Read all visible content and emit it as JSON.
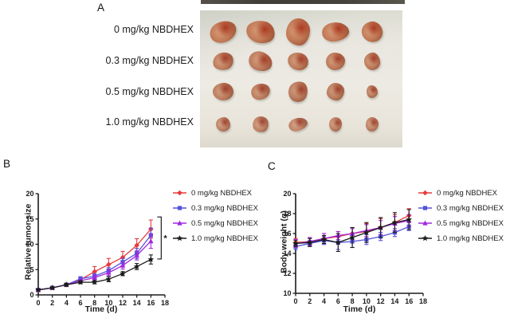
{
  "figure": {
    "panel_a": {
      "letter": "A",
      "rows": [
        {
          "label": "0 mg/kg NBDHEX",
          "tumor_sizes": [
            [
              34,
              26
            ],
            [
              36,
              28
            ],
            [
              30,
              34
            ],
            [
              34,
              24
            ],
            [
              26,
              26
            ]
          ]
        },
        {
          "label": "0.3 mg/kg NBDHEX",
          "tumor_sizes": [
            [
              26,
              22
            ],
            [
              30,
              24
            ],
            [
              26,
              22
            ],
            [
              24,
              22
            ],
            [
              20,
              22
            ]
          ]
        },
        {
          "label": "0.5 mg/kg NBDHEX",
          "tumor_sizes": [
            [
              26,
              22
            ],
            [
              24,
              20
            ],
            [
              24,
              26
            ],
            [
              22,
              22
            ],
            [
              14,
              16
            ]
          ]
        },
        {
          "label": "1.0 mg/kg NBDHEX",
          "tumor_sizes": [
            [
              18,
              18
            ],
            [
              20,
              20
            ],
            [
              24,
              16
            ],
            [
              16,
              18
            ],
            [
              16,
              18
            ]
          ]
        }
      ]
    },
    "panel_b": {
      "letter": "B"
    },
    "panel_c": {
      "letter": "C"
    }
  },
  "colors": {
    "red": "#e8393c",
    "blue": "#5353dd",
    "purple": "#a228dd",
    "black": "#1b1b1b"
  },
  "chart_data": [
    {
      "id": "relative-tumor-size",
      "type": "line",
      "title": "",
      "xlabel": "Time (d)",
      "ylabel": "Relative tumor size",
      "x": [
        0,
        2,
        4,
        6,
        8,
        10,
        12,
        14,
        16
      ],
      "xlim": [
        0,
        18
      ],
      "ylim": [
        0,
        20
      ],
      "xticks": [
        0,
        2,
        4,
        6,
        8,
        10,
        12,
        14,
        16,
        18
      ],
      "yticks": [
        0,
        5,
        10,
        15,
        20
      ],
      "grid": false,
      "legend_position": "right",
      "series": [
        {
          "name": "0 mg/kg NBDHEX",
          "color": "#e8393c",
          "marker": "diamond",
          "values": [
            1.0,
            1.4,
            2.0,
            3.0,
            4.6,
            6.0,
            7.4,
            9.8,
            13.0
          ],
          "errors": [
            0.2,
            0.2,
            0.3,
            0.5,
            1.0,
            1.2,
            1.2,
            1.3,
            1.8
          ]
        },
        {
          "name": "0.3 mg/kg NBDHEX",
          "color": "#5353dd",
          "marker": "square",
          "values": [
            1.0,
            1.4,
            2.0,
            3.2,
            3.7,
            4.8,
            6.5,
            8.2,
            11.8
          ],
          "errors": [
            0.2,
            0.2,
            0.3,
            0.4,
            0.5,
            0.6,
            0.7,
            1.0,
            1.4
          ]
        },
        {
          "name": "0.5 mg/kg NBDHEX",
          "color": "#a228dd",
          "marker": "triangle",
          "values": [
            1.0,
            1.4,
            2.0,
            2.8,
            3.4,
            4.4,
            5.8,
            7.8,
            10.6
          ],
          "errors": [
            0.2,
            0.2,
            0.3,
            0.4,
            0.5,
            0.6,
            0.7,
            0.9,
            1.4
          ]
        },
        {
          "name": "1.0 mg/kg NBDHEX",
          "color": "#1b1b1b",
          "marker": "star",
          "values": [
            1.0,
            1.4,
            2.0,
            2.5,
            2.5,
            3.1,
            4.2,
            5.6,
            7.0
          ],
          "errors": [
            0.2,
            0.2,
            0.3,
            0.3,
            0.3,
            0.5,
            0.4,
            0.6,
            0.9
          ]
        }
      ],
      "annotation": {
        "text": "*",
        "x": 16,
        "y_top": 15.4,
        "y_bottom": 7.1
      }
    },
    {
      "id": "body-weight",
      "type": "line",
      "title": "",
      "xlabel": "Time (d)",
      "ylabel": "Body weight (g)",
      "x": [
        0,
        2,
        4,
        6,
        8,
        10,
        12,
        14,
        16
      ],
      "xlim": [
        0,
        18
      ],
      "ylim": [
        10,
        20
      ],
      "xticks": [
        0,
        2,
        4,
        6,
        8,
        10,
        12,
        14,
        16,
        18
      ],
      "yticks": [
        10,
        12,
        14,
        16,
        18,
        20
      ],
      "grid": false,
      "legend_position": "right",
      "series": [
        {
          "name": "0 mg/kg NBDHEX",
          "color": "#e8393c",
          "marker": "diamond",
          "values": [
            15.1,
            15.2,
            15.5,
            15.7,
            16.0,
            16.2,
            16.6,
            17.1,
            17.8
          ],
          "errors": [
            0.4,
            0.4,
            0.5,
            0.5,
            0.6,
            0.8,
            0.9,
            0.8,
            0.7
          ]
        },
        {
          "name": "0.3 mg/kg NBDHEX",
          "color": "#5353dd",
          "marker": "square",
          "values": [
            14.7,
            15.0,
            15.3,
            15.1,
            15.2,
            15.4,
            15.7,
            16.1,
            16.7
          ],
          "errors": [
            0.3,
            0.3,
            0.4,
            0.7,
            0.6,
            0.5,
            0.4,
            0.4,
            0.4
          ]
        },
        {
          "name": "0.5 mg/kg NBDHEX",
          "color": "#a228dd",
          "marker": "triangle",
          "values": [
            15.0,
            15.2,
            15.5,
            15.8,
            16.0,
            16.3,
            16.6,
            17.0,
            17.3
          ],
          "errors": [
            0.4,
            0.4,
            0.5,
            0.4,
            0.5,
            0.6,
            0.7,
            0.7,
            0.6
          ]
        },
        {
          "name": "1.0 mg/kg NBDHEX",
          "color": "#1b1b1b",
          "marker": "star",
          "values": [
            15.0,
            15.1,
            15.4,
            15.1,
            15.6,
            16.1,
            16.6,
            17.1,
            17.4
          ],
          "errors": [
            0.3,
            0.4,
            0.4,
            0.9,
            1.0,
            1.0,
            1.0,
            1.0,
            1.0
          ]
        }
      ]
    }
  ]
}
